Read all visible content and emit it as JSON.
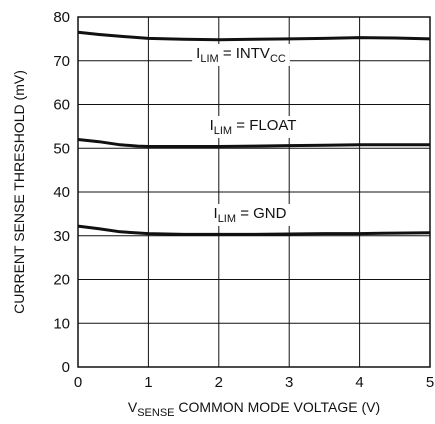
{
  "chart_data": {
    "type": "line",
    "title": "",
    "xlabel": {
      "prefix": "V",
      "subscript": "SENSE",
      "suffix": " COMMON MODE VOLTAGE (V)"
    },
    "ylabel": "CURRENT SENSE THRESHOLD (mV)",
    "xlim": [
      0,
      5
    ],
    "ylim": [
      0,
      80
    ],
    "xticks": [
      "0",
      "1",
      "2",
      "3",
      "4",
      "5"
    ],
    "yticks": [
      "0",
      "10",
      "20",
      "30",
      "40",
      "50",
      "60",
      "70",
      "80"
    ],
    "grid": true,
    "line_color": "#111111",
    "series": [
      {
        "label": {
          "prefix": "I",
          "subscript": "LIM",
          "mid": " = INTV",
          "subscript2": "CC"
        },
        "x": [
          0,
          0.3,
          0.6,
          1.0,
          1.5,
          2.0,
          2.5,
          3.0,
          3.5,
          4.0,
          4.5,
          5.0
        ],
        "y": [
          76.5,
          76.0,
          75.6,
          75.1,
          74.9,
          74.8,
          74.9,
          75.0,
          75.1,
          75.3,
          75.2,
          75.0
        ]
      },
      {
        "label": {
          "prefix": "I",
          "subscript": "LIM",
          "mid": " = FLOAT"
        },
        "x": [
          0,
          0.3,
          0.6,
          0.85,
          1.0,
          1.5,
          2.0,
          2.5,
          3.0,
          3.5,
          4.0,
          4.5,
          5.0
        ],
        "y": [
          52.0,
          51.5,
          50.8,
          50.5,
          50.4,
          50.4,
          50.4,
          50.5,
          50.6,
          50.7,
          50.8,
          50.8,
          50.8
        ]
      },
      {
        "label": {
          "prefix": "I",
          "subscript": "LIM",
          "mid": " = GND"
        },
        "x": [
          0,
          0.3,
          0.6,
          1.0,
          1.5,
          2.0,
          2.5,
          3.0,
          3.5,
          4.0,
          4.5,
          5.0
        ],
        "y": [
          32.2,
          31.6,
          30.9,
          30.5,
          30.3,
          30.3,
          30.3,
          30.4,
          30.5,
          30.5,
          30.6,
          30.7
        ]
      }
    ]
  }
}
